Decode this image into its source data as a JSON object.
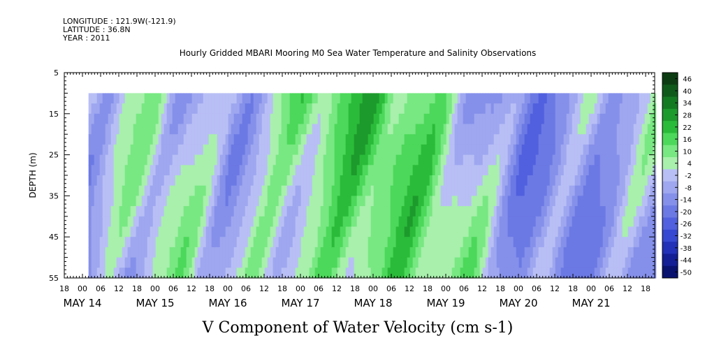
{
  "header": {
    "longitude": "LONGITUDE : 121.9W(-121.9)",
    "latitude": "LATITUDE : 36.8N",
    "year": "YEAR : 2011"
  },
  "chart_data": {
    "type": "heatmap",
    "title": "Hourly Gridded MBARI Mooring M0 Sea Water Temperature and Salinity Observations",
    "xlabel": "V Component of Water Velocity (cm s-1)",
    "ylabel": "DEPTH (m)",
    "ylim": [
      5,
      55
    ],
    "y_inverted": true,
    "y_ticks": [
      5,
      15,
      25,
      35,
      45,
      55
    ],
    "x_range_hours": [
      "May 13 18:00",
      "May 21 21:00"
    ],
    "x_hour_ticks": [
      "18",
      "00",
      "06",
      "12",
      "18",
      "00",
      "06",
      "12",
      "18",
      "00",
      "06",
      "12",
      "18",
      "00",
      "06",
      "12",
      "18",
      "00",
      "06",
      "12",
      "18",
      "00",
      "06",
      "12",
      "18",
      "00",
      "06",
      "12",
      "18",
      "00",
      "06",
      "12",
      "18"
    ],
    "x_day_labels": [
      "MAY 14",
      "MAY 15",
      "MAY 16",
      "MAY 17",
      "MAY 18",
      "MAY 19",
      "MAY 20",
      "MAY 21"
    ],
    "data_depth_range": [
      10,
      55
    ],
    "data_time_start": "May 14 02:00",
    "colorbar": {
      "min": -50,
      "max": 50,
      "step": 3,
      "labels": [
        "46",
        "40",
        "34",
        "28",
        "22",
        "16",
        "10",
        "4",
        "-2",
        "-8",
        "-14",
        "-20",
        "-26",
        "-32",
        "-38",
        "-44",
        "-50"
      ],
      "colors_from_top": [
        "#0c3d12",
        "#0f5a1a",
        "#147a22",
        "#1d9a2c",
        "#2bbb3a",
        "#4cd85a",
        "#78e882",
        "#a8f0ac",
        "#b8bff5",
        "#9ea7ef",
        "#8590ea",
        "#6b79e4",
        "#5060de",
        "#3648d2",
        "#2231b8",
        "#141f96",
        "#0a1270"
      ]
    },
    "mean_v_by_day_approx": {
      "MAY 14": -8,
      "MAY 15": 2,
      "MAY 16": -4,
      "MAY 17": 12,
      "MAY 18": 16,
      "MAY 19": 6,
      "MAY 20": -10,
      "MAY 21": -6
    }
  }
}
